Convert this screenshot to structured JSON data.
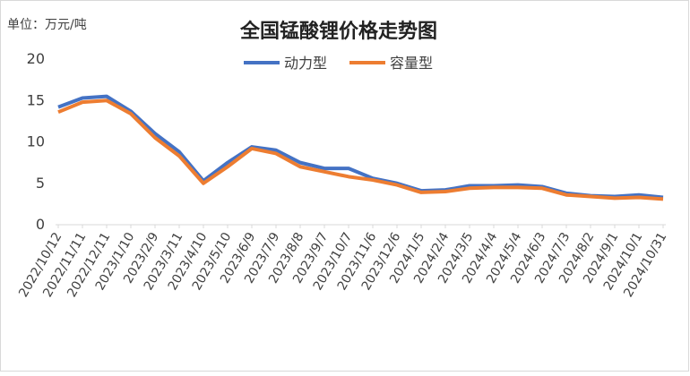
{
  "chart_data": {
    "type": "line",
    "title": "全国锰酸锂价格走势图",
    "unit_label": "单位：万元/吨",
    "categories": [
      "2022/10/12",
      "2022/11/11",
      "2022/12/11",
      "2023/1/10",
      "2023/2/9",
      "2023/3/11",
      "2023/4/10",
      "2023/5/10",
      "2023/6/9",
      "2023/7/9",
      "2023/8/8",
      "2023/9/7",
      "2023/10/7",
      "2023/11/6",
      "2023/12/6",
      "2024/1/5",
      "2024/2/4",
      "2024/3/5",
      "2024/4/4",
      "2024/5/4",
      "2024/6/3",
      "2024/7/3",
      "2024/8/2",
      "2024/9/1",
      "2024/10/1",
      "2024/10/31"
    ],
    "series": [
      {
        "name": "动力型",
        "color": "#4472c4",
        "values": [
          14.2,
          15.3,
          15.5,
          13.7,
          11.0,
          8.8,
          5.3,
          7.5,
          9.4,
          9.0,
          7.5,
          6.8,
          6.8,
          5.6,
          5.0,
          4.1,
          4.2,
          4.7,
          4.7,
          4.8,
          4.6,
          3.8,
          3.5,
          3.4,
          3.6,
          3.3
        ]
      },
      {
        "name": "容量型",
        "color": "#ed7d31",
        "values": [
          13.6,
          14.8,
          15.0,
          13.4,
          10.5,
          8.3,
          5.0,
          7.0,
          9.2,
          8.6,
          7.0,
          6.4,
          5.8,
          5.4,
          4.8,
          3.9,
          4.0,
          4.4,
          4.5,
          4.5,
          4.4,
          3.6,
          3.4,
          3.2,
          3.3,
          3.1
        ]
      }
    ],
    "ylim": [
      0,
      20
    ],
    "yticks": [
      0,
      5,
      10,
      15,
      20
    ],
    "grid": false,
    "legend": "top"
  }
}
